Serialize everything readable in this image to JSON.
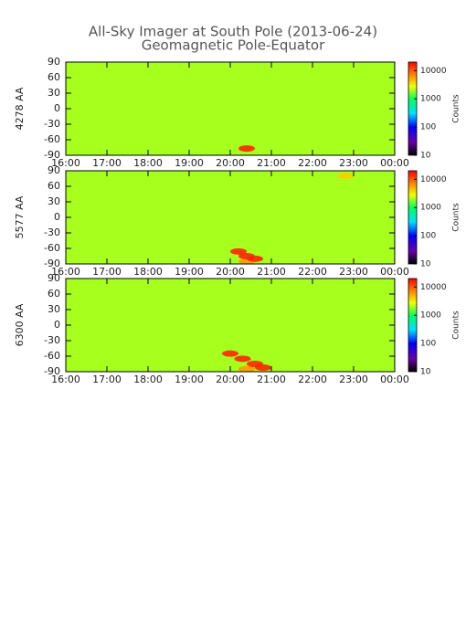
{
  "title": "All-Sky Imager at South Pole (2013-06-24)",
  "subtitle": "Geomagnetic Pole-Equator",
  "chart_data": [
    {
      "type": "heatmap",
      "ylabel": "4278 AA",
      "colorbar_label": "Counts",
      "xlim": [
        16,
        24
      ],
      "xticks": [
        {
          "value": 16,
          "label": "16:00"
        },
        {
          "value": 17,
          "label": "17:00"
        },
        {
          "value": 18,
          "label": "18:00"
        },
        {
          "value": 19,
          "label": "19:00"
        },
        {
          "value": 20,
          "label": "20:00"
        },
        {
          "value": 21,
          "label": "21:00"
        },
        {
          "value": 22,
          "label": "22:00"
        },
        {
          "value": 23,
          "label": "23:00"
        },
        {
          "value": 24,
          "label": "00:00"
        }
      ],
      "ylim": [
        -90,
        90
      ],
      "yticks": [
        -90,
        -60,
        -30,
        0,
        30,
        60,
        90
      ],
      "clim": [
        10,
        20000
      ],
      "cticks": [
        10,
        100,
        1000,
        10000
      ],
      "log_color": true,
      "background": 2000,
      "x": [
        20.4
      ],
      "y": [
        -77
      ],
      "values": [
        15000
      ]
    },
    {
      "type": "heatmap",
      "ylabel": "5577 AA",
      "colorbar_label": "Counts",
      "xlim": [
        16,
        24
      ],
      "xticks": [
        {
          "value": 16,
          "label": "16:00"
        },
        {
          "value": 17,
          "label": "17:00"
        },
        {
          "value": 18,
          "label": "18:00"
        },
        {
          "value": 19,
          "label": "19:00"
        },
        {
          "value": 20,
          "label": "20:00"
        },
        {
          "value": 21,
          "label": "21:00"
        },
        {
          "value": 22,
          "label": "22:00"
        },
        {
          "value": 23,
          "label": "23:00"
        },
        {
          "value": 24,
          "label": "00:00"
        }
      ],
      "ylim": [
        -90,
        90
      ],
      "yticks": [
        -90,
        -60,
        -30,
        0,
        30,
        60,
        90
      ],
      "clim": [
        10,
        20000
      ],
      "cticks": [
        10,
        100,
        1000,
        10000
      ],
      "log_color": true,
      "background": 2000,
      "x": [
        20.4,
        22.8,
        20.2,
        20.4,
        20.6
      ],
      "y": [
        -85,
        80,
        -66,
        -75,
        -80
      ],
      "values": [
        6000,
        4000,
        15000,
        15000,
        15000
      ]
    },
    {
      "type": "heatmap",
      "ylabel": "6300 AA",
      "colorbar_label": "Counts",
      "xlim": [
        16,
        24
      ],
      "xticks": [
        {
          "value": 16,
          "label": "16:00"
        },
        {
          "value": 17,
          "label": "17:00"
        },
        {
          "value": 18,
          "label": "18:00"
        },
        {
          "value": 19,
          "label": "19:00"
        },
        {
          "value": 20,
          "label": "20:00"
        },
        {
          "value": 21,
          "label": "21:00"
        },
        {
          "value": 22,
          "label": "22:00"
        },
        {
          "value": 23,
          "label": "23:00"
        },
        {
          "value": 24,
          "label": "00:00"
        }
      ],
      "ylim": [
        -90,
        90
      ],
      "yticks": [
        -90,
        -60,
        -30,
        0,
        30,
        60,
        90
      ],
      "clim": [
        10,
        20000
      ],
      "cticks": [
        10,
        100,
        1000,
        10000
      ],
      "log_color": true,
      "background": 2000,
      "x": [
        20.4,
        20.0,
        20.3,
        20.6,
        20.8
      ],
      "y": [
        -85,
        -55,
        -65,
        -75,
        -82
      ],
      "values": [
        6000,
        15000,
        15000,
        15000,
        15000
      ]
    }
  ]
}
